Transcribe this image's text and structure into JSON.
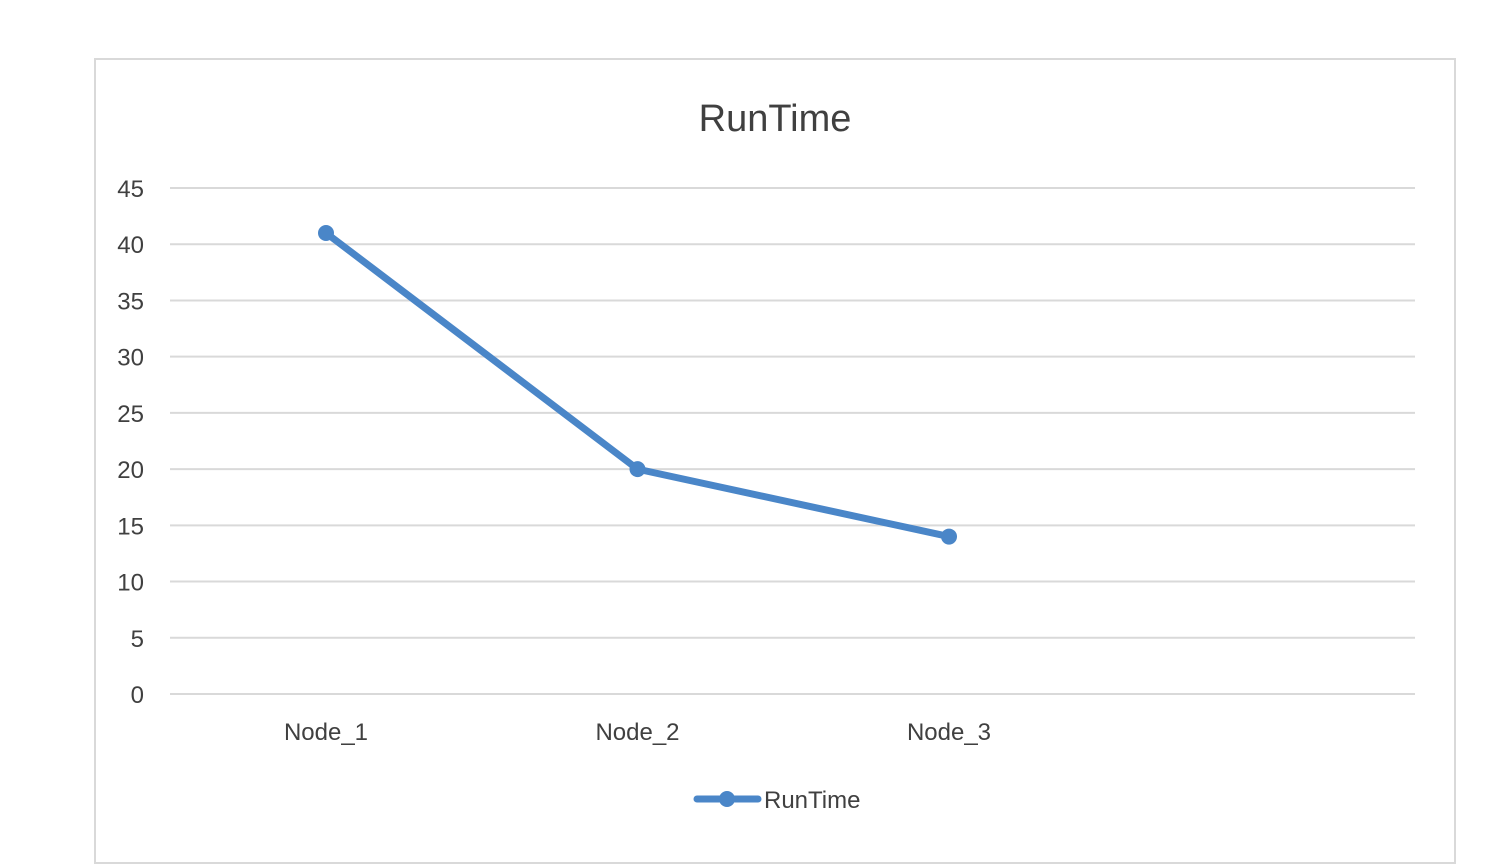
{
  "chart_data": {
    "type": "line",
    "title": "RunTime",
    "xlabel": "",
    "ylabel": "",
    "categories": [
      "Node_1",
      "Node_2",
      "Node_3"
    ],
    "series": [
      {
        "name": "RunTime",
        "values": [
          41,
          20,
          14
        ]
      }
    ],
    "ylim": [
      0,
      45
    ],
    "yticks": [
      0,
      5,
      10,
      15,
      20,
      25,
      30,
      35,
      40,
      45
    ],
    "grid": true,
    "legend": "bottom",
    "colors": {
      "series": "#4a86c8",
      "grid": "#d9d9d9",
      "text": "#404040"
    }
  }
}
